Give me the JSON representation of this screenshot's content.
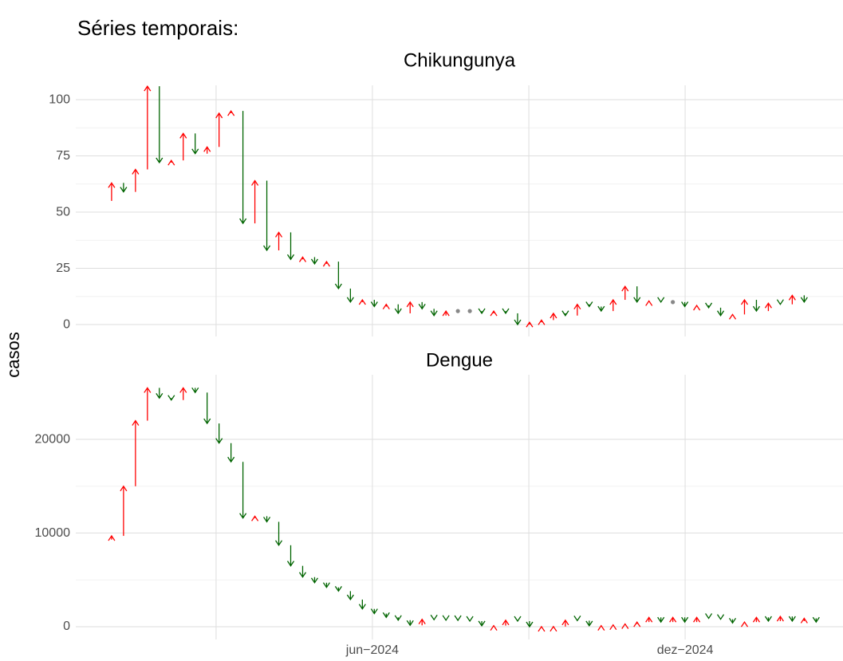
{
  "title": "Séries temporais:",
  "ylabel": "casos",
  "chart_data": [
    {
      "type": "arrows",
      "title": "Chikungunya",
      "x": [
        -1,
        0,
        1,
        2,
        3,
        4,
        5,
        6,
        7,
        8,
        9,
        10,
        11,
        12,
        13,
        14,
        15,
        16,
        17,
        18,
        19,
        20,
        21,
        22,
        23,
        24,
        25,
        26,
        27,
        28,
        29,
        30,
        31,
        32,
        33,
        34,
        35,
        36,
        37,
        38,
        39,
        40,
        41,
        42,
        43,
        44,
        45,
        46,
        47,
        48,
        49,
        50,
        51,
        52,
        53,
        54,
        55,
        56,
        57,
        58
      ],
      "values": [
        55,
        63,
        59,
        69,
        106,
        72,
        73,
        85,
        76,
        79,
        94,
        95,
        45,
        64,
        33,
        41,
        29,
        30,
        27,
        28,
        16,
        10,
        11,
        8,
        9,
        5,
        10,
        7,
        4,
        6,
        6,
        6,
        5,
        6,
        5,
        0,
        1,
        2,
        5,
        4,
        9,
        8,
        6,
        11,
        17,
        10,
        10.5,
        10,
        10,
        8,
        8.5,
        7.5,
        4,
        4.5,
        11,
        6,
        9.5,
        9,
        13,
        10
      ],
      "colors": {
        "up": "#ff0000",
        "down": "#006400",
        "same": "#888888"
      },
      "xlim": [
        -3.0,
        61.25
      ],
      "ylim": [
        -5.3,
        106.4
      ],
      "yticks": [
        0,
        25,
        50,
        75,
        100
      ],
      "xticks": [
        {
          "value": 21.84,
          "label": "jun−2024"
        },
        {
          "value": 48.03,
          "label": "dez−2024"
        }
      ],
      "x_minor_grid": [
        8.75,
        34.94
      ],
      "grid": true
    },
    {
      "type": "arrows",
      "title": "Dengue",
      "x": [
        -1,
        0,
        1,
        2,
        3,
        4,
        5,
        6,
        7,
        8,
        9,
        10,
        11,
        12,
        13,
        14,
        15,
        16,
        17,
        18,
        19,
        20,
        21,
        22,
        23,
        24,
        25,
        26,
        27,
        28,
        29,
        30,
        31,
        32,
        33,
        34,
        35,
        36,
        37,
        38,
        39,
        40,
        41,
        42,
        43,
        44,
        45,
        46,
        47,
        48,
        49,
        50,
        51,
        52,
        53,
        54,
        55,
        56,
        57,
        58,
        59
      ],
      "values": [
        9300,
        9700,
        15000,
        22000,
        25500,
        24400,
        24200,
        25500,
        25000,
        21700,
        19600,
        17600,
        11600,
        11800,
        11200,
        8700,
        6500,
        5300,
        4700,
        4200,
        3800,
        2900,
        1900,
        1400,
        1000,
        700,
        150,
        800,
        750,
        700,
        680,
        600,
        100,
        120,
        700,
        600,
        0,
        10,
        20,
        700,
        650,
        100,
        120,
        200,
        300,
        500,
        1000,
        500,
        1000,
        500,
        1000,
        900,
        800,
        400,
        500,
        1000,
        600,
        1100,
        600,
        900,
        500
      ],
      "colors": {
        "up": "#ff0000",
        "down": "#006400",
        "same": "#888888"
      },
      "xlim": [
        -3.0,
        61.25
      ],
      "ylim": [
        -1360,
        26900
      ],
      "yticks": [
        0,
        10000,
        20000
      ],
      "xticks": [
        {
          "value": 21.84,
          "label": "jun−2024"
        },
        {
          "value": 48.03,
          "label": "dez−2024"
        }
      ],
      "x_minor_grid": [
        8.75,
        34.94
      ],
      "grid": true
    }
  ]
}
